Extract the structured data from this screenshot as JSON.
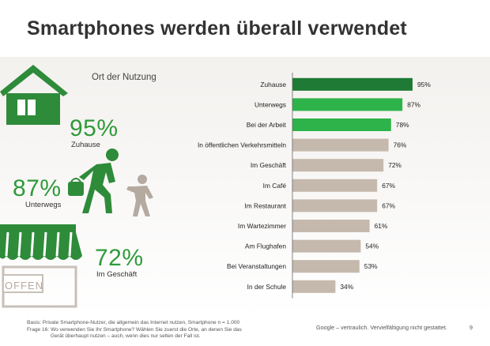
{
  "title": "Smartphones werden überall verwendet",
  "subtitle": "Ort der Nutzung",
  "highlights": [
    {
      "value": "95%",
      "label": "Zuhause"
    },
    {
      "value": "87%",
      "label": "Unterwegs"
    },
    {
      "value": "72%",
      "label": "Im Geschäft"
    }
  ],
  "shop_sign": "OFFEN",
  "footer": {
    "basis": "Basis: Private Smartphone-Nutzer, die allgemein das Internet nutzen, Smartphone n = 1.000",
    "question_line1": "Frage 16:   Wo verwenden Sie Ihr Smartphone? Wählen Sie zuerst die Orte, an denen Sie das",
    "question_line2": "Gerät überhaupt nutzen – auch, wenn dies nur selten der Fall ist.",
    "confidential": "Google – vertraulich. Vervielfältigung nicht gestattet.",
    "page": "9"
  },
  "colors": {
    "dark_green": "#1e7a34",
    "green": "#2db34a",
    "beige": "#c5b9ad",
    "icon_green": "#2e8b3a",
    "icon_gray": "#b5aaa0"
  },
  "icons": [
    "house-icon",
    "walking-person-icon",
    "child-icon",
    "shop-awning-icon"
  ],
  "chart_data": {
    "type": "bar",
    "orientation": "horizontal",
    "categories": [
      "Zuhause",
      "Unterwegs",
      "Bei der Arbeit",
      "In öffentlichen Verkehrsmitteln",
      "Im Geschäft",
      "Im Café",
      "Im Restaurant",
      "Im Wartezimmer",
      "Am Flughafen",
      "Bei Veranstaltungen",
      "In der Schule"
    ],
    "values": [
      95,
      87,
      78,
      76,
      72,
      67,
      67,
      61,
      54,
      53,
      34
    ],
    "value_labels": [
      "95%",
      "87%",
      "78%",
      "76%",
      "72%",
      "67%",
      "67%",
      "61%",
      "54%",
      "53%",
      "34%"
    ],
    "bar_colors": [
      "#1e7a34",
      "#2db34a",
      "#2db34a",
      "#c5b9ad",
      "#c5b9ad",
      "#c5b9ad",
      "#c5b9ad",
      "#c5b9ad",
      "#c5b9ad",
      "#c5b9ad",
      "#c5b9ad"
    ],
    "xlim": [
      0,
      100
    ],
    "title": "Ort der Nutzung",
    "xlabel": "",
    "ylabel": "",
    "grid": false,
    "legend": "none"
  }
}
